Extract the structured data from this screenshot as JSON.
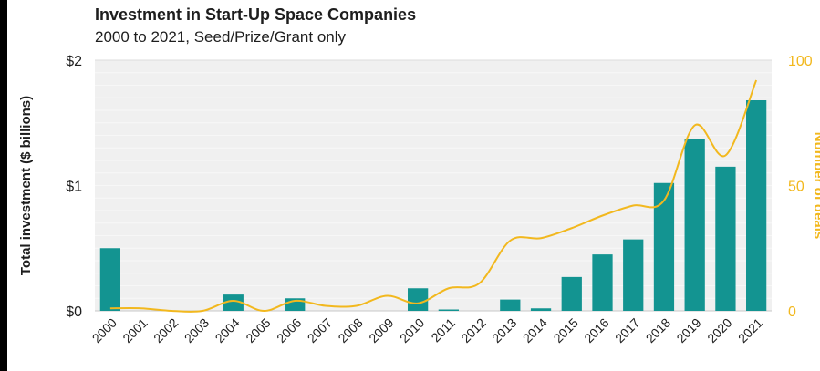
{
  "chart_data": {
    "type": "bar",
    "title": "Investment in Start-Up Space Companies",
    "subtitle": "2000 to 2021, Seed/Prize/Grant only",
    "ylabel": "Total investment ($ billions)",
    "y2label": "Number of deals",
    "categories": [
      "2000",
      "2001",
      "2002",
      "2003",
      "2004",
      "2005",
      "2006",
      "2007",
      "2008",
      "2009",
      "2010",
      "2011",
      "2012",
      "2013",
      "2014",
      "2015",
      "2016",
      "2017",
      "2018",
      "2019",
      "2020",
      "2021"
    ],
    "series": [
      {
        "type": "bar",
        "axis": "left",
        "color": "#139491",
        "values": [
          0.5,
          0,
          0,
          0,
          0.13,
          0,
          0.1,
          0,
          0,
          0,
          0.18,
          0.01,
          0,
          0.09,
          0.02,
          0.27,
          0.45,
          0.57,
          1.02,
          1.37,
          1.15,
          1.68
        ]
      },
      {
        "type": "line",
        "axis": "right",
        "color": "#F2B81E",
        "values": [
          1,
          1,
          0,
          0,
          4,
          0,
          4,
          2,
          2,
          6,
          3,
          9,
          11,
          28,
          29,
          33,
          38,
          42,
          44,
          74,
          62,
          92
        ]
      }
    ],
    "ylim": [
      0,
      2
    ],
    "yticks": [
      0,
      1,
      2
    ],
    "ytick_labels": [
      "$0",
      "$1",
      "$2"
    ],
    "y2lim": [
      0,
      100
    ],
    "y2ticks": [
      0,
      50,
      100
    ],
    "y2tick_labels": [
      "0",
      "50",
      "100"
    ],
    "grid": true,
    "plot_background": "#f0f0f0"
  }
}
